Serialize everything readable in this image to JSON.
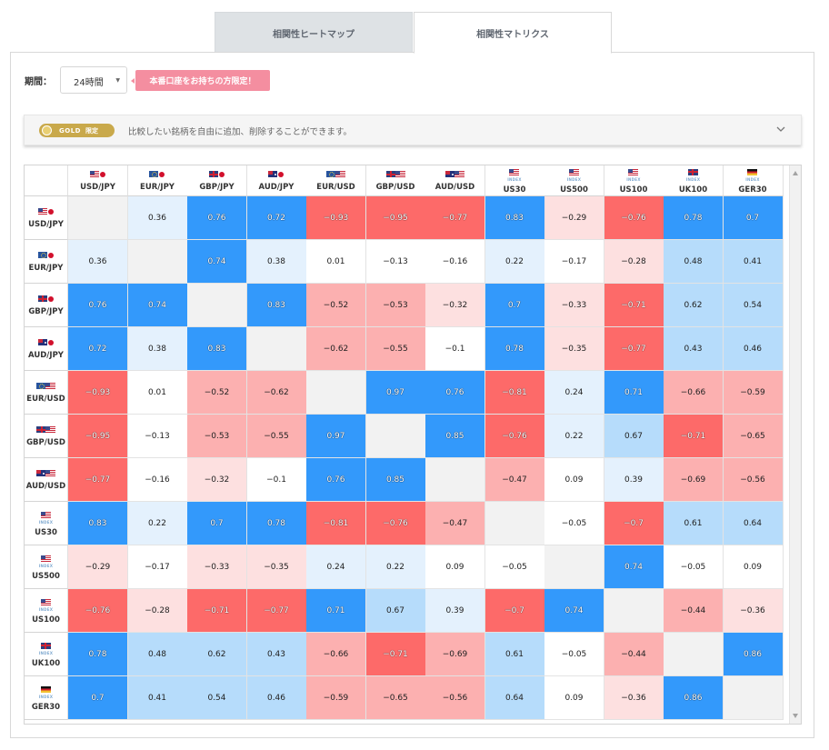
{
  "tabs": [
    {
      "label": "相関性ヒートマップ",
      "active": false
    },
    {
      "label": "相関性マトリクス",
      "active": true
    }
  ],
  "period": {
    "label": "期間：",
    "value": "24時間"
  },
  "promo": "本番口座をお持ちの方限定！",
  "gold": {
    "badge": "GOLD",
    "badge_sub": "限定",
    "text": "比較したい銘柄を自由に追加、削除することができます。"
  },
  "colors": {
    "strong_blue": "#3399fb",
    "light_blue": "#b6dcfb",
    "pale_blue": "#e4f1fd",
    "strong_red": "#fd6a69",
    "light_red": "#fcb0b0",
    "pale_red": "#fde0e0",
    "diag": "#f2f2f2"
  },
  "instruments": [
    {
      "name": "USD/JPY",
      "flags": [
        "us",
        "jp"
      ],
      "idx": false
    },
    {
      "name": "EUR/JPY",
      "flags": [
        "eu",
        "jp"
      ],
      "idx": false
    },
    {
      "name": "GBP/JPY",
      "flags": [
        "gb",
        "jp"
      ],
      "idx": false
    },
    {
      "name": "AUD/JPY",
      "flags": [
        "au",
        "jp"
      ],
      "idx": false
    },
    {
      "name": "EUR/USD",
      "flags": [
        "eu",
        "us"
      ],
      "idx": false
    },
    {
      "name": "GBP/USD",
      "flags": [
        "gb",
        "us"
      ],
      "idx": false
    },
    {
      "name": "AUD/USD",
      "flags": [
        "au",
        "us"
      ],
      "idx": false
    },
    {
      "name": "US30",
      "flags": [
        "us"
      ],
      "idx": true
    },
    {
      "name": "US500",
      "flags": [
        "us"
      ],
      "idx": true
    },
    {
      "name": "US100",
      "flags": [
        "us"
      ],
      "idx": true
    },
    {
      "name": "UK100",
      "flags": [
        "gb"
      ],
      "idx": true
    },
    {
      "name": "GER30",
      "flags": [
        "de"
      ],
      "idx": true
    }
  ],
  "index_tag": "INDEX",
  "matrix": [
    [
      null,
      0.36,
      0.76,
      0.72,
      -0.93,
      -0.95,
      -0.77,
      0.83,
      -0.29,
      -0.76,
      0.78,
      0.7
    ],
    [
      0.36,
      null,
      0.74,
      0.38,
      0.01,
      -0.13,
      -0.16,
      0.22,
      -0.17,
      -0.28,
      0.48,
      0.41
    ],
    [
      0.76,
      0.74,
      null,
      0.83,
      -0.52,
      -0.53,
      -0.32,
      0.7,
      -0.33,
      -0.71,
      0.62,
      0.54
    ],
    [
      0.72,
      0.38,
      0.83,
      null,
      -0.62,
      -0.55,
      -0.1,
      0.78,
      -0.35,
      -0.77,
      0.43,
      0.46
    ],
    [
      -0.93,
      0.01,
      -0.52,
      -0.62,
      null,
      0.97,
      0.76,
      -0.81,
      0.24,
      0.71,
      -0.66,
      -0.59
    ],
    [
      -0.95,
      -0.13,
      -0.53,
      -0.55,
      0.97,
      null,
      0.85,
      -0.76,
      0.22,
      0.67,
      -0.71,
      -0.65
    ],
    [
      -0.77,
      -0.16,
      -0.32,
      -0.1,
      0.76,
      0.85,
      null,
      -0.47,
      0.09,
      0.39,
      -0.69,
      -0.56
    ],
    [
      0.83,
      0.22,
      0.7,
      0.78,
      -0.81,
      -0.76,
      -0.47,
      null,
      -0.05,
      -0.7,
      0.61,
      0.64
    ],
    [
      -0.29,
      -0.17,
      -0.33,
      -0.35,
      0.24,
      0.22,
      0.09,
      -0.05,
      null,
      0.74,
      -0.05,
      0.09
    ],
    [
      -0.76,
      -0.28,
      -0.71,
      -0.77,
      0.71,
      0.67,
      0.39,
      -0.7,
      0.74,
      null,
      -0.44,
      -0.36
    ],
    [
      0.78,
      0.48,
      0.62,
      0.43,
      -0.66,
      -0.71,
      -0.69,
      0.61,
      -0.05,
      -0.44,
      null,
      0.86
    ],
    [
      0.7,
      0.41,
      0.54,
      0.46,
      -0.59,
      -0.65,
      -0.56,
      0.64,
      0.09,
      -0.36,
      0.86,
      null
    ]
  ]
}
